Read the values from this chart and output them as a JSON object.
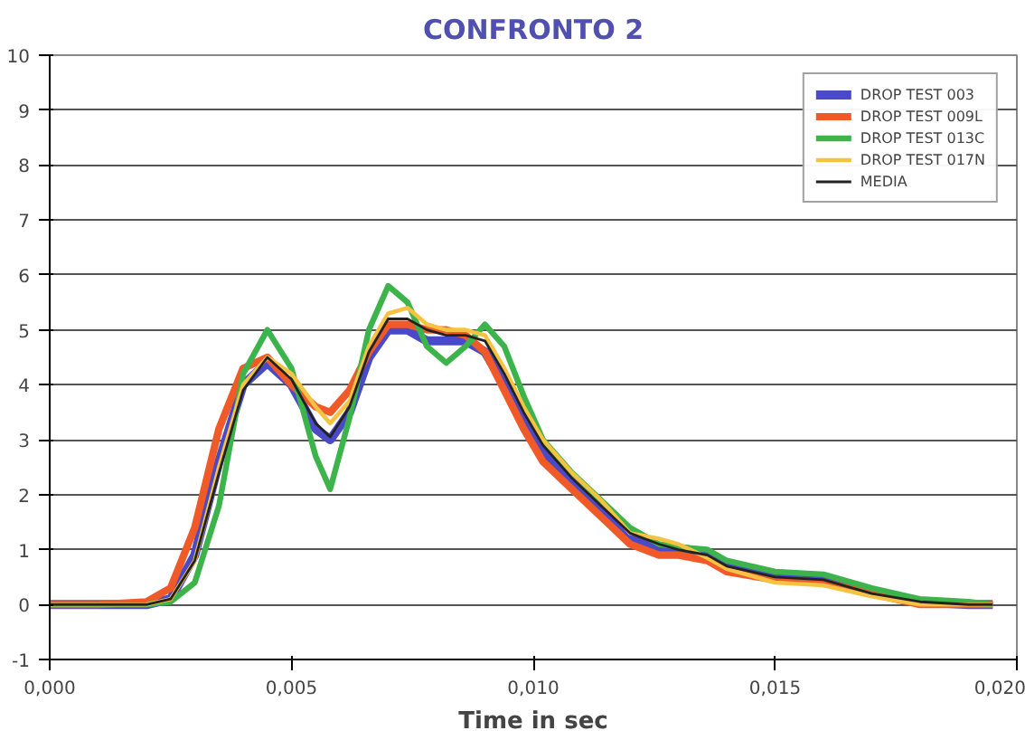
{
  "chart_data": {
    "type": "line",
    "title": "CONFRONTO 2",
    "xlabel": "Time in sec",
    "x": [
      0,
      0.001,
      0.002,
      0.0025,
      0.003,
      0.0035,
      0.004,
      0.0045,
      0.005,
      0.0055,
      0.0058,
      0.0062,
      0.0066,
      0.007,
      0.0074,
      0.0078,
      0.0082,
      0.0086,
      0.009,
      0.0094,
      0.0098,
      0.0102,
      0.0108,
      0.0114,
      0.012,
      0.0126,
      0.013,
      0.0136,
      0.014,
      0.015,
      0.016,
      0.017,
      0.018,
      0.019,
      0.0195
    ],
    "series": [
      {
        "name": "DROP TEST 003",
        "color": "#4a4ac8",
        "values": [
          0,
          0,
          0,
          0.1,
          0.9,
          2.6,
          4.0,
          4.4,
          4.0,
          3.2,
          3.0,
          3.5,
          4.5,
          5.0,
          5.0,
          4.8,
          4.8,
          4.8,
          4.6,
          4.0,
          3.3,
          2.8,
          2.2,
          1.7,
          1.2,
          1.0,
          1.0,
          0.9,
          0.7,
          0.5,
          0.45,
          0.25,
          0.05,
          0,
          0
        ]
      },
      {
        "name": "DROP TEST 009L",
        "color": "#f05a28",
        "values": [
          0,
          0,
          0.05,
          0.3,
          1.4,
          3.2,
          4.3,
          4.5,
          4.0,
          3.6,
          3.5,
          3.9,
          4.6,
          5.1,
          5.1,
          5.0,
          5.0,
          4.9,
          4.6,
          3.9,
          3.2,
          2.6,
          2.1,
          1.6,
          1.1,
          0.9,
          0.9,
          0.8,
          0.6,
          0.45,
          0.4,
          0.2,
          0,
          0,
          0
        ]
      },
      {
        "name": "DROP TEST 013C",
        "color": "#3cb44b",
        "values": [
          0,
          0,
          0,
          0.05,
          0.4,
          1.8,
          4.2,
          5.0,
          4.3,
          2.7,
          2.1,
          3.4,
          5.0,
          5.8,
          5.5,
          4.7,
          4.4,
          4.7,
          5.1,
          4.7,
          3.8,
          3.0,
          2.4,
          1.9,
          1.4,
          1.1,
          1.05,
          1.0,
          0.8,
          0.6,
          0.55,
          0.3,
          0.1,
          0.05,
          0
        ]
      },
      {
        "name": "DROP TEST 017N",
        "color": "#f5c242",
        "values": [
          0,
          0,
          0,
          0.1,
          0.8,
          2.5,
          4.0,
          4.5,
          4.2,
          3.6,
          3.3,
          3.7,
          4.7,
          5.3,
          5.4,
          5.1,
          5.0,
          5.0,
          4.9,
          4.3,
          3.6,
          3.0,
          2.4,
          1.9,
          1.3,
          1.2,
          1.1,
          0.85,
          0.65,
          0.4,
          0.35,
          0.15,
          0,
          0,
          0
        ]
      },
      {
        "name": "MEDIA",
        "color": "#222222",
        "values": [
          0,
          0,
          0,
          0.1,
          0.8,
          2.4,
          3.9,
          4.5,
          4.1,
          3.3,
          3.05,
          3.6,
          4.6,
          5.2,
          5.2,
          5.0,
          4.9,
          4.9,
          4.8,
          4.2,
          3.5,
          2.9,
          2.3,
          1.8,
          1.3,
          1.1,
          1.0,
          0.9,
          0.7,
          0.5,
          0.45,
          0.2,
          0.05,
          0,
          0
        ]
      }
    ],
    "xlim": [
      0,
      0.02
    ],
    "xticks": [
      {
        "value": 0,
        "label": "0,000"
      },
      {
        "value": 0.005,
        "label": "0,005"
      },
      {
        "value": 0.01,
        "label": "0,010"
      },
      {
        "value": 0.015,
        "label": "0,015"
      },
      {
        "value": 0.02,
        "label": "0,020"
      }
    ],
    "ylim": [
      -1,
      10
    ],
    "yticks": [
      -1,
      0,
      1,
      2,
      3,
      4,
      5,
      6,
      7,
      8,
      9,
      10
    ],
    "grid": "y",
    "legend": "top right",
    "line_style": "solid"
  }
}
